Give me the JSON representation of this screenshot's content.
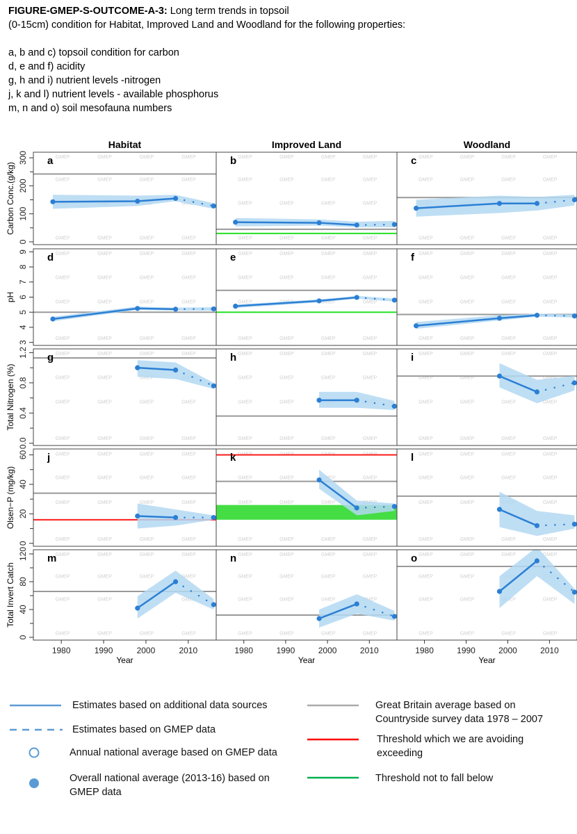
{
  "caption": {
    "figure_id": "FIGURE-GMEP-S-OUTCOME-A-3:",
    "title_rest": " Long term trends in topsoil",
    "title_line2": "(0-15cm) condition for Habitat, Improved Land and Woodland for the following properties:",
    "items": [
      "a, b and c) topsoil condition for carbon",
      "d, e and f) acidity",
      "g, h and i) nutrient levels -nitrogen",
      "j, k and l) nutrient levels - available phosphorus",
      "m, n and o) soil mesofauna numbers"
    ]
  },
  "watermark": "GMEP",
  "colors": {
    "series_line": "#2b7fd4",
    "ci_band": "#b3d8f2",
    "gb_average": "#999999",
    "threshold_exceed": "#ff1a1a",
    "threshold_min": "#22e022",
    "threshold_band": "#44dd44"
  },
  "chart_data": {
    "type": "line",
    "title": "Long term trends in topsoil (0-15cm) condition",
    "columns": [
      "Habitat",
      "Improved Land",
      "Woodland"
    ],
    "xlabel": "Year",
    "xlim": [
      1973.4,
      2016.6
    ],
    "xticks": [
      1980,
      1990,
      2000,
      2010
    ],
    "rows": [
      {
        "ylabel": "Carbon Conc.(g/kg)",
        "ylim": [
          -10,
          320
        ],
        "yticks": [
          0,
          100,
          200,
          300
        ],
        "yminor": [
          50,
          150,
          250
        ],
        "panels": [
          {
            "letter": "a",
            "gb_average": 242,
            "solid": {
              "x": [
                1978,
                1998,
                2007
              ],
              "y": [
                143,
                145,
                155
              ],
              "lo": [
                118,
                128,
                145
              ],
              "hi": [
                168,
                165,
                168
              ]
            },
            "dotted": {
              "x": [
                2007,
                2016
              ],
              "y": [
                155,
                128
              ],
              "lo": [
                145,
                118
              ],
              "hi": [
                168,
                138
              ]
            }
          },
          {
            "letter": "b",
            "gb_average": 45,
            "threshold_min": 30,
            "solid": {
              "x": [
                1978,
                1998,
                2007
              ],
              "y": [
                70,
                68,
                60
              ],
              "lo": [
                55,
                58,
                52
              ],
              "hi": [
                85,
                80,
                72
              ]
            },
            "dotted": {
              "x": [
                2007,
                2016
              ],
              "y": [
                60,
                62
              ],
              "lo": [
                52,
                52
              ],
              "hi": [
                72,
                75
              ]
            }
          },
          {
            "letter": "c",
            "gb_average": 158,
            "solid": {
              "x": [
                1978,
                1998,
                2007
              ],
              "y": [
                120,
                137,
                137
              ],
              "lo": [
                90,
                103,
                112
              ],
              "hi": [
                150,
                165,
                160
              ]
            },
            "dotted": {
              "x": [
                2007,
                2016
              ],
              "y": [
                137,
                150
              ],
              "lo": [
                112,
                130
              ],
              "hi": [
                160,
                168
              ]
            }
          }
        ]
      },
      {
        "ylabel": "pH",
        "ylim": [
          2.8,
          9.2
        ],
        "yticks": [
          3,
          4,
          5,
          6,
          7,
          8,
          9
        ],
        "yminor": [],
        "panels": [
          {
            "letter": "d",
            "gb_average": 5.0,
            "solid": {
              "x": [
                1978,
                1998,
                2007
              ],
              "y": [
                4.55,
                5.25,
                5.2
              ],
              "lo": [
                4.4,
                5.15,
                5.1
              ],
              "hi": [
                4.7,
                5.38,
                5.3
              ]
            },
            "dotted": {
              "x": [
                2007,
                2016
              ],
              "y": [
                5.2,
                5.22
              ],
              "lo": [
                5.1,
                5.1
              ],
              "hi": [
                5.3,
                5.33
              ]
            }
          },
          {
            "letter": "e",
            "gb_average": 6.45,
            "threshold_min": 5.0,
            "solid": {
              "x": [
                1978,
                1998,
                2007
              ],
              "y": [
                5.4,
                5.75,
                5.98
              ],
              "lo": [
                5.28,
                5.65,
                5.9
              ],
              "hi": [
                5.5,
                5.85,
                6.08
              ]
            },
            "dotted": {
              "x": [
                2007,
                2016
              ],
              "y": [
                5.98,
                5.8
              ],
              "lo": [
                5.9,
                5.7
              ],
              "hi": [
                6.08,
                5.9
              ]
            }
          },
          {
            "letter": "f",
            "gb_average": 4.85,
            "solid": {
              "x": [
                1978,
                1998,
                2007
              ],
              "y": [
                4.1,
                4.6,
                4.8
              ],
              "lo": [
                3.9,
                4.45,
                4.7
              ],
              "hi": [
                4.35,
                4.8,
                4.9
              ]
            },
            "dotted": {
              "x": [
                2007,
                2016
              ],
              "y": [
                4.8,
                4.75
              ],
              "lo": [
                4.7,
                4.65
              ],
              "hi": [
                4.9,
                4.85
              ]
            }
          }
        ]
      },
      {
        "ylabel": "Total Nitrogen (%)",
        "ylim": [
          -0.03,
          1.25
        ],
        "yticks": [
          0.0,
          0.4,
          0.8,
          1.2
        ],
        "ytick_labels": [
          "0.0",
          "0.4",
          "0.8",
          "1.2"
        ],
        "yminor": [
          0.2,
          0.6,
          1.0
        ],
        "panels": [
          {
            "letter": "g",
            "gb_average": 1.13,
            "solid": {
              "x": [
                1998,
                2007
              ],
              "y": [
                1.0,
                0.97
              ],
              "lo": [
                0.88,
                0.85
              ],
              "hi": [
                1.1,
                1.07
              ]
            },
            "dotted": {
              "x": [
                2007,
                2016
              ],
              "y": [
                0.97,
                0.76
              ],
              "lo": [
                0.85,
                0.72
              ],
              "hi": [
                1.07,
                0.8
              ]
            }
          },
          {
            "letter": "h",
            "gb_average": 0.36,
            "solid": {
              "x": [
                1998,
                2007
              ],
              "y": [
                0.57,
                0.57
              ],
              "lo": [
                0.47,
                0.47
              ],
              "hi": [
                0.68,
                0.68
              ]
            },
            "dotted": {
              "x": [
                2007,
                2016
              ],
              "y": [
                0.57,
                0.49
              ],
              "lo": [
                0.47,
                0.44
              ],
              "hi": [
                0.68,
                0.56
              ]
            }
          },
          {
            "letter": "i",
            "gb_average": 0.89,
            "solid": {
              "x": [
                1998,
                2007
              ],
              "y": [
                0.89,
                0.68
              ],
              "lo": [
                0.74,
                0.53
              ],
              "hi": [
                1.06,
                0.84
              ]
            },
            "dotted": {
              "x": [
                2007,
                2016
              ],
              "y": [
                0.68,
                0.8
              ],
              "lo": [
                0.53,
                0.7
              ],
              "hi": [
                0.84,
                0.89
              ]
            }
          }
        ]
      },
      {
        "ylabel": "Olsen−P (mg/kg)",
        "ylim": [
          -2,
          64
        ],
        "yticks": [
          0,
          20,
          40,
          60
        ],
        "yminor": [
          10,
          30,
          50
        ],
        "panels": [
          {
            "letter": "j",
            "gb_average": 34,
            "threshold_exceed": 16,
            "solid": {
              "x": [
                1998,
                2007
              ],
              "y": [
                18.5,
                17.5
              ],
              "lo": [
                10,
                12
              ],
              "hi": [
                27,
                23
              ]
            },
            "dotted": {
              "x": [
                2007,
                2016
              ],
              "y": [
                17.5,
                17.5
              ],
              "lo": [
                12,
                16
              ],
              "hi": [
                23,
                19
              ]
            }
          },
          {
            "letter": "k",
            "gb_average": 42,
            "threshold_exceed": 60,
            "threshold_band": [
              16,
              26
            ],
            "solid": {
              "x": [
                1998,
                2007
              ],
              "y": [
                43,
                24
              ],
              "lo": [
                37,
                19
              ],
              "hi": [
                50,
                29
              ]
            },
            "dotted": {
              "x": [
                2007,
                2016
              ],
              "y": [
                24,
                25
              ],
              "lo": [
                19,
                22
              ],
              "hi": [
                29,
                27
              ]
            }
          },
          {
            "letter": "l",
            "gb_average": 32,
            "solid": {
              "x": [
                1998,
                2007
              ],
              "y": [
                23,
                12
              ],
              "lo": [
                11,
                5
              ],
              "hi": [
                35,
                22
              ]
            },
            "dotted": {
              "x": [
                2007,
                2016
              ],
              "y": [
                12,
                13
              ],
              "lo": [
                5,
                10
              ],
              "hi": [
                22,
                19
              ]
            }
          }
        ]
      },
      {
        "ylabel": "Total Invert Catch",
        "ylim": [
          -4,
          126
        ],
        "yticks": [
          0,
          40,
          80,
          120
        ],
        "yminor": [
          20,
          60,
          100
        ],
        "panels": [
          {
            "letter": "m",
            "gb_average": 66,
            "solid": {
              "x": [
                1998,
                2007
              ],
              "y": [
                42,
                80
              ],
              "lo": [
                27,
                64
              ],
              "hi": [
                59,
                96
              ]
            },
            "dotted": {
              "x": [
                2007,
                2016
              ],
              "y": [
                80,
                47
              ],
              "lo": [
                64,
                40
              ],
              "hi": [
                96,
                55
              ]
            }
          },
          {
            "letter": "n",
            "gb_average": 32,
            "solid": {
              "x": [
                1998,
                2007
              ],
              "y": [
                27,
                48
              ],
              "lo": [
                14,
                34
              ],
              "hi": [
                40,
                62
              ]
            },
            "dotted": {
              "x": [
                2007,
                2016
              ],
              "y": [
                48,
                30
              ],
              "lo": [
                34,
                24
              ],
              "hi": [
                62,
                38
              ]
            }
          },
          {
            "letter": "o",
            "gb_average": 102,
            "solid": {
              "x": [
                1998,
                2007
              ],
              "y": [
                66,
                110
              ],
              "lo": [
                42,
                88
              ],
              "hi": [
                88,
                130
              ]
            },
            "dotted": {
              "x": [
                2007,
                2016
              ],
              "y": [
                110,
                65
              ],
              "lo": [
                88,
                48
              ],
              "hi": [
                130,
                70
              ]
            }
          }
        ]
      }
    ]
  },
  "legend": {
    "left": [
      {
        "symbol": "solid-line",
        "label": "Estimates based on additional data sources"
      },
      {
        "symbol": "dashed-line",
        "label": "Estimates based on GMEP data"
      },
      {
        "symbol": "open-circle",
        "label": "Annual national average based on GMEP data"
      },
      {
        "symbol": "filled-circle",
        "label": "Overall national average (2013-16) based on",
        "label2": "GMEP data"
      }
    ],
    "right": [
      {
        "symbol": "gray-line",
        "label": "Great Britain average based on",
        "label2": "Countryside survey data 1978 – 2007"
      },
      {
        "symbol": "red-line",
        "label": "Threshold which we are avoiding",
        "label2": "exceeding"
      },
      {
        "symbol": "green-line",
        "label": "Threshold not to fall below"
      }
    ]
  }
}
